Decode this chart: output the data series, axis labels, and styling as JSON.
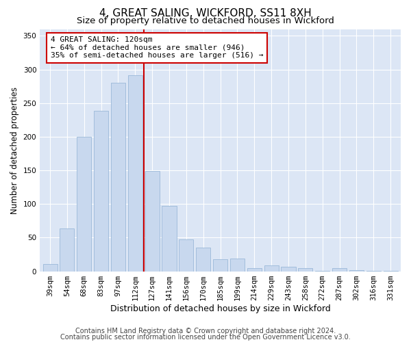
{
  "title": "4, GREAT SALING, WICKFORD, SS11 8XH",
  "subtitle": "Size of property relative to detached houses in Wickford",
  "xlabel": "Distribution of detached houses by size in Wickford",
  "ylabel": "Number of detached properties",
  "categories": [
    "39sqm",
    "54sqm",
    "68sqm",
    "83sqm",
    "97sqm",
    "112sqm",
    "127sqm",
    "141sqm",
    "156sqm",
    "170sqm",
    "185sqm",
    "199sqm",
    "214sqm",
    "229sqm",
    "243sqm",
    "258sqm",
    "272sqm",
    "287sqm",
    "302sqm",
    "316sqm",
    "331sqm"
  ],
  "values": [
    11,
    64,
    200,
    238,
    280,
    291,
    149,
    97,
    47,
    35,
    18,
    19,
    5,
    9,
    7,
    5,
    1,
    5,
    2,
    1,
    1
  ],
  "bar_color": "#c8d8ee",
  "bar_edge_color": "#9bb8d8",
  "property_line_x": 5.5,
  "property_line_color": "#cc0000",
  "annotation_text": "4 GREAT SALING: 120sqm\n← 64% of detached houses are smaller (946)\n35% of semi-detached houses are larger (516) →",
  "annotation_box_color": "#ffffff",
  "annotation_box_edge": "#cc0000",
  "ylim": [
    0,
    360
  ],
  "yticks": [
    0,
    50,
    100,
    150,
    200,
    250,
    300,
    350
  ],
  "footer1": "Contains HM Land Registry data © Crown copyright and database right 2024.",
  "footer2": "Contains public sector information licensed under the Open Government Licence v3.0.",
  "bg_color": "#ffffff",
  "plot_bg_color": "#dce6f5",
  "title_fontsize": 11,
  "subtitle_fontsize": 9.5,
  "tick_fontsize": 7.5,
  "ylabel_fontsize": 8.5,
  "xlabel_fontsize": 9,
  "footer_fontsize": 7,
  "annot_fontsize": 8
}
